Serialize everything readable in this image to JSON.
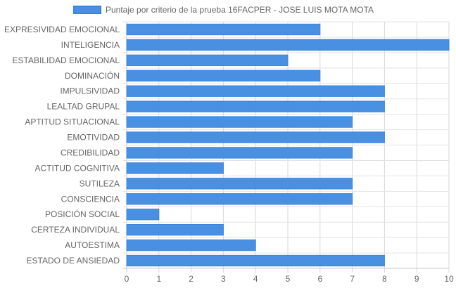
{
  "chart_data": {
    "type": "bar",
    "orientation": "horizontal",
    "legend": {
      "position": "top",
      "label": "Puntaje por criterio de la prueba 16FACPER - JOSE LUIS MOTA MOTA"
    },
    "categories": [
      "EXPRESIVIDAD EMOCIONAL",
      "INTELIGENCIA",
      "ESTABILIDAD EMOCIONAL",
      "DOMINACIÓN",
      "IMPULSIVIDAD",
      "LEALTAD GRUPAL",
      "APTITUD SITUACIONAL",
      "EMOTIVIDAD",
      "CREDIBILIDAD",
      "ACTITUD COGNITIVA",
      "SUTILEZA",
      "CONSCIENCIA",
      "POSICIÓN SOCIAL",
      "CERTEZA INDIVIDUAL",
      "AUTOESTIMA",
      "ESTADO DE ANSIEDAD"
    ],
    "series": [
      {
        "name": "Puntaje por criterio de la prueba 16FACPER - JOSE LUIS MOTA MOTA",
        "values": [
          6,
          10,
          5,
          6,
          8,
          8,
          7,
          8,
          7,
          3,
          7,
          7,
          1,
          3,
          4,
          8
        ]
      }
    ],
    "xlim": [
      0,
      10
    ],
    "x_ticks": [
      "0",
      "1",
      "2",
      "3",
      "4",
      "5",
      "6",
      "7",
      "8",
      "9",
      "10"
    ],
    "grid": true,
    "colors": {
      "bar_fill": "#4a90e2",
      "bar_border": "#3c83dc",
      "grid": "#e3e3e3",
      "axis": "#c8c8c8"
    }
  }
}
